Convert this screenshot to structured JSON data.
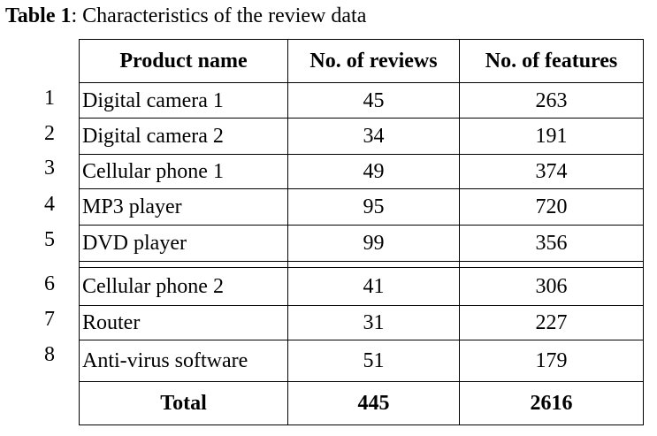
{
  "caption": {
    "label": "Table 1",
    "text": ": Characteristics of the review data"
  },
  "table": {
    "headers": {
      "product": "Product name",
      "reviews": "No. of reviews",
      "features": "No. of features"
    },
    "rows": [
      {
        "num": "1",
        "name": "Digital camera 1",
        "reviews": "45",
        "features": "263"
      },
      {
        "num": "2",
        "name": "Digital camera 2",
        "reviews": "34",
        "features": "191"
      },
      {
        "num": "3",
        "name": "Cellular phone 1",
        "reviews": "49",
        "features": "374"
      },
      {
        "num": "4",
        "name": "MP3 player",
        "reviews": "95",
        "features": "720"
      },
      {
        "num": "5",
        "name": "DVD player",
        "reviews": "99",
        "features": "356"
      },
      {
        "num": "6",
        "name": "Cellular phone 2",
        "reviews": "41",
        "features": "306"
      },
      {
        "num": "7",
        "name": "Router",
        "reviews": "31",
        "features": "227"
      },
      {
        "num": "8",
        "name": "Anti-virus software",
        "reviews": "51",
        "features": "179"
      }
    ],
    "total": {
      "label": "Total",
      "reviews": "445",
      "features": "2616"
    }
  }
}
